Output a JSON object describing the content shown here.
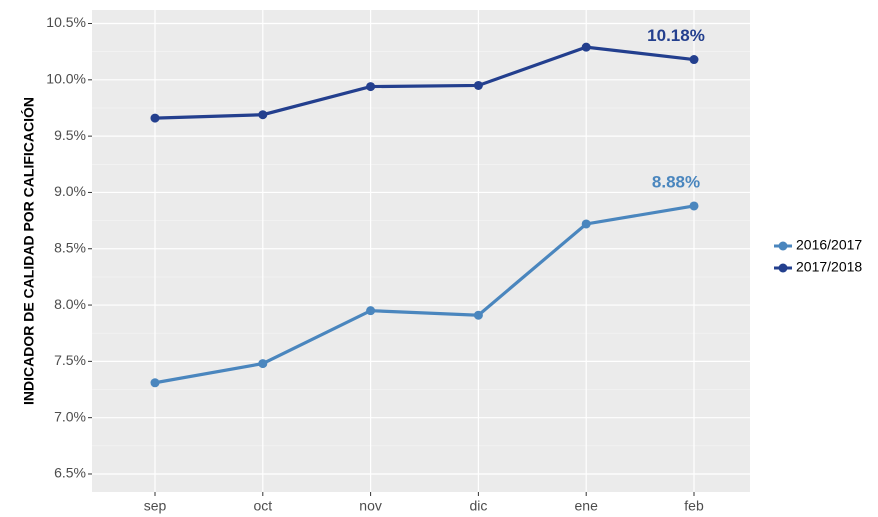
{
  "chart_data": {
    "type": "line",
    "y_label": "INDICADOR DE CALIDAD POR CALIFICACIÓN",
    "categories": [
      "sep",
      "oct",
      "nov",
      "dic",
      "ene",
      "feb"
    ],
    "series": [
      {
        "name": "2016/2017",
        "color": "#4a86be",
        "values": [
          7.31,
          7.48,
          7.95,
          7.91,
          8.72,
          8.88
        ],
        "value_labels": [
          null,
          null,
          null,
          null,
          null,
          "8.88%"
        ]
      },
      {
        "name": "2017/2018",
        "color": "#233f8e",
        "values": [
          9.66,
          9.69,
          9.94,
          9.95,
          10.29,
          10.18
        ],
        "value_labels": [
          null,
          null,
          null,
          null,
          null,
          "10.18%"
        ]
      }
    ],
    "ylim": [
      6.34,
      10.62
    ],
    "yticks": [
      {
        "value": 6.5,
        "label": "6.5%"
      },
      {
        "value": 7.0,
        "label": "7.0%"
      },
      {
        "value": 7.5,
        "label": "7.5%"
      },
      {
        "value": 8.0,
        "label": "8.0%"
      },
      {
        "value": 8.5,
        "label": "8.5%"
      },
      {
        "value": 9.0,
        "label": "9.0%"
      },
      {
        "value": 9.5,
        "label": "9.5%"
      },
      {
        "value": 10.0,
        "label": "10.0%"
      },
      {
        "value": 10.5,
        "label": "10.5%"
      }
    ],
    "grid": true,
    "legend": "right"
  }
}
